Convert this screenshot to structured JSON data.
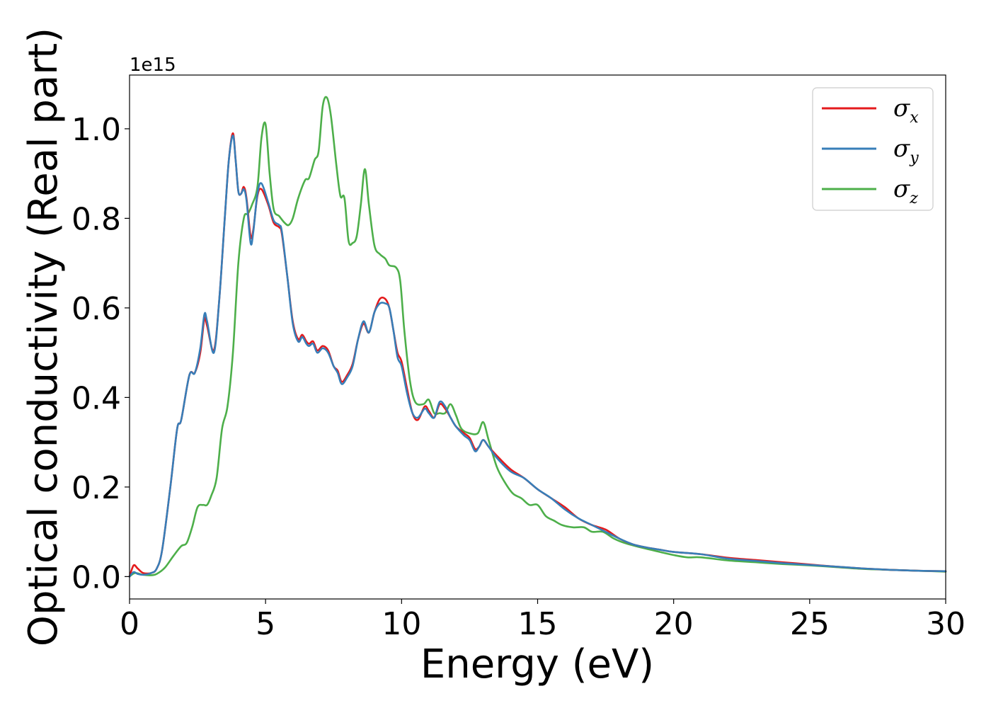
{
  "chart_data": {
    "type": "line",
    "title": "",
    "xlabel": "Energy (eV)",
    "ylabel": "Optical conductivity (Real part)",
    "y_offset_label": "1e15",
    "xlim": [
      0,
      30
    ],
    "ylim": [
      -0.05,
      1.12
    ],
    "xticks": [
      0,
      5,
      10,
      15,
      20,
      25,
      30
    ],
    "xtick_labels": [
      "0",
      "5",
      "10",
      "15",
      "20",
      "25",
      "30"
    ],
    "yticks": [
      0.0,
      0.2,
      0.4,
      0.6,
      0.8,
      1.0
    ],
    "ytick_labels": [
      "0.0",
      "0.2",
      "0.4",
      "0.6",
      "0.8",
      "1.0"
    ],
    "grid": false,
    "legend_position": "top-right",
    "series": [
      {
        "name": "σx",
        "symbol": "σ",
        "sub": "x",
        "color": "#e41a1c",
        "points": [
          [
            0,
            0.0
          ],
          [
            0.15,
            0.025
          ],
          [
            0.3,
            0.018
          ],
          [
            0.5,
            0.008
          ],
          [
            0.8,
            0.008
          ],
          [
            1.0,
            0.018
          ],
          [
            1.2,
            0.06
          ],
          [
            1.5,
            0.2
          ],
          [
            1.75,
            0.33
          ],
          [
            1.9,
            0.35
          ],
          [
            2.2,
            0.45
          ],
          [
            2.4,
            0.455
          ],
          [
            2.6,
            0.5
          ],
          [
            2.75,
            0.575
          ],
          [
            2.85,
            0.56
          ],
          [
            3.1,
            0.505
          ],
          [
            3.3,
            0.62
          ],
          [
            3.5,
            0.8
          ],
          [
            3.65,
            0.93
          ],
          [
            3.8,
            0.99
          ],
          [
            3.9,
            0.93
          ],
          [
            4.0,
            0.86
          ],
          [
            4.1,
            0.855
          ],
          [
            4.2,
            0.87
          ],
          [
            4.3,
            0.845
          ],
          [
            4.45,
            0.76
          ],
          [
            4.55,
            0.775
          ],
          [
            4.7,
            0.85
          ],
          [
            4.85,
            0.865
          ],
          [
            5.1,
            0.83
          ],
          [
            5.3,
            0.79
          ],
          [
            5.5,
            0.78
          ],
          [
            5.6,
            0.765
          ],
          [
            5.8,
            0.67
          ],
          [
            6.0,
            0.57
          ],
          [
            6.2,
            0.53
          ],
          [
            6.35,
            0.54
          ],
          [
            6.5,
            0.525
          ],
          [
            6.6,
            0.52
          ],
          [
            6.75,
            0.525
          ],
          [
            6.9,
            0.505
          ],
          [
            7.1,
            0.515
          ],
          [
            7.3,
            0.505
          ],
          [
            7.5,
            0.47
          ],
          [
            7.65,
            0.46
          ],
          [
            7.8,
            0.435
          ],
          [
            8.0,
            0.45
          ],
          [
            8.2,
            0.475
          ],
          [
            8.4,
            0.53
          ],
          [
            8.6,
            0.565
          ],
          [
            8.8,
            0.545
          ],
          [
            9.0,
            0.59
          ],
          [
            9.2,
            0.62
          ],
          [
            9.4,
            0.62
          ],
          [
            9.55,
            0.6
          ],
          [
            9.7,
            0.55
          ],
          [
            9.85,
            0.5
          ],
          [
            10.0,
            0.48
          ],
          [
            10.2,
            0.42
          ],
          [
            10.4,
            0.365
          ],
          [
            10.6,
            0.35
          ],
          [
            10.85,
            0.38
          ],
          [
            11.0,
            0.37
          ],
          [
            11.2,
            0.355
          ],
          [
            11.4,
            0.385
          ],
          [
            11.6,
            0.375
          ],
          [
            11.8,
            0.355
          ],
          [
            12.0,
            0.335
          ],
          [
            12.3,
            0.32
          ],
          [
            12.5,
            0.31
          ],
          [
            12.7,
            0.285
          ],
          [
            12.85,
            0.29
          ],
          [
            13.0,
            0.305
          ],
          [
            13.2,
            0.29
          ],
          [
            13.5,
            0.27
          ],
          [
            14.0,
            0.24
          ],
          [
            14.5,
            0.22
          ],
          [
            15.0,
            0.195
          ],
          [
            15.5,
            0.175
          ],
          [
            16.0,
            0.155
          ],
          [
            16.5,
            0.13
          ],
          [
            17.0,
            0.115
          ],
          [
            17.5,
            0.105
          ],
          [
            18.0,
            0.085
          ],
          [
            18.5,
            0.072
          ],
          [
            19.0,
            0.065
          ],
          [
            19.5,
            0.06
          ],
          [
            20.0,
            0.055
          ],
          [
            21.0,
            0.05
          ],
          [
            22.0,
            0.042
          ],
          [
            23.0,
            0.037
          ],
          [
            24.0,
            0.032
          ],
          [
            25.0,
            0.027
          ],
          [
            26.0,
            0.022
          ],
          [
            27.0,
            0.018
          ],
          [
            28.0,
            0.015
          ],
          [
            29.0,
            0.013
          ],
          [
            30.0,
            0.012
          ]
        ]
      },
      {
        "name": "σy",
        "symbol": "σ",
        "sub": "y",
        "color": "#377eb8",
        "points": [
          [
            0,
            0.0
          ],
          [
            0.15,
            0.01
          ],
          [
            0.3,
            0.006
          ],
          [
            0.5,
            0.004
          ],
          [
            0.8,
            0.008
          ],
          [
            1.0,
            0.018
          ],
          [
            1.2,
            0.06
          ],
          [
            1.5,
            0.2
          ],
          [
            1.75,
            0.33
          ],
          [
            1.9,
            0.35
          ],
          [
            2.2,
            0.45
          ],
          [
            2.4,
            0.455
          ],
          [
            2.6,
            0.51
          ],
          [
            2.75,
            0.585
          ],
          [
            2.85,
            0.57
          ],
          [
            3.1,
            0.5
          ],
          [
            3.3,
            0.62
          ],
          [
            3.5,
            0.8
          ],
          [
            3.65,
            0.93
          ],
          [
            3.8,
            0.985
          ],
          [
            3.9,
            0.93
          ],
          [
            4.0,
            0.86
          ],
          [
            4.1,
            0.855
          ],
          [
            4.2,
            0.865
          ],
          [
            4.3,
            0.84
          ],
          [
            4.45,
            0.745
          ],
          [
            4.55,
            0.77
          ],
          [
            4.7,
            0.855
          ],
          [
            4.85,
            0.878
          ],
          [
            5.1,
            0.835
          ],
          [
            5.3,
            0.795
          ],
          [
            5.5,
            0.785
          ],
          [
            5.6,
            0.77
          ],
          [
            5.8,
            0.67
          ],
          [
            6.0,
            0.565
          ],
          [
            6.2,
            0.525
          ],
          [
            6.35,
            0.535
          ],
          [
            6.5,
            0.52
          ],
          [
            6.6,
            0.515
          ],
          [
            6.75,
            0.52
          ],
          [
            6.9,
            0.5
          ],
          [
            7.1,
            0.51
          ],
          [
            7.3,
            0.5
          ],
          [
            7.5,
            0.47
          ],
          [
            7.65,
            0.455
          ],
          [
            7.8,
            0.43
          ],
          [
            8.0,
            0.445
          ],
          [
            8.2,
            0.47
          ],
          [
            8.4,
            0.53
          ],
          [
            8.6,
            0.57
          ],
          [
            8.8,
            0.545
          ],
          [
            9.0,
            0.59
          ],
          [
            9.2,
            0.61
          ],
          [
            9.4,
            0.61
          ],
          [
            9.55,
            0.6
          ],
          [
            9.7,
            0.55
          ],
          [
            9.85,
            0.49
          ],
          [
            10.0,
            0.47
          ],
          [
            10.2,
            0.41
          ],
          [
            10.4,
            0.365
          ],
          [
            10.6,
            0.355
          ],
          [
            10.85,
            0.375
          ],
          [
            11.0,
            0.365
          ],
          [
            11.2,
            0.355
          ],
          [
            11.4,
            0.39
          ],
          [
            11.6,
            0.38
          ],
          [
            11.8,
            0.355
          ],
          [
            12.0,
            0.335
          ],
          [
            12.3,
            0.315
          ],
          [
            12.5,
            0.305
          ],
          [
            12.7,
            0.28
          ],
          [
            12.85,
            0.29
          ],
          [
            13.0,
            0.305
          ],
          [
            13.2,
            0.29
          ],
          [
            13.5,
            0.265
          ],
          [
            14.0,
            0.235
          ],
          [
            14.5,
            0.22
          ],
          [
            15.0,
            0.195
          ],
          [
            15.5,
            0.175
          ],
          [
            16.0,
            0.15
          ],
          [
            16.5,
            0.13
          ],
          [
            17.0,
            0.115
          ],
          [
            17.5,
            0.1
          ],
          [
            18.0,
            0.085
          ],
          [
            18.5,
            0.072
          ],
          [
            19.0,
            0.065
          ],
          [
            19.5,
            0.06
          ],
          [
            20.0,
            0.055
          ],
          [
            21.0,
            0.05
          ],
          [
            22.0,
            0.04
          ],
          [
            23.0,
            0.035
          ],
          [
            24.0,
            0.03
          ],
          [
            25.0,
            0.026
          ],
          [
            26.0,
            0.022
          ],
          [
            27.0,
            0.018
          ],
          [
            28.0,
            0.015
          ],
          [
            29.0,
            0.013
          ],
          [
            30.0,
            0.012
          ]
        ]
      },
      {
        "name": "σz",
        "symbol": "σ",
        "sub": "z",
        "color": "#4daf4a",
        "points": [
          [
            0,
            0.0
          ],
          [
            0.2,
            0.008
          ],
          [
            0.5,
            0.004
          ],
          [
            0.8,
            0.003
          ],
          [
            1.0,
            0.006
          ],
          [
            1.3,
            0.02
          ],
          [
            1.6,
            0.045
          ],
          [
            1.9,
            0.068
          ],
          [
            2.1,
            0.075
          ],
          [
            2.3,
            0.11
          ],
          [
            2.5,
            0.155
          ],
          [
            2.7,
            0.16
          ],
          [
            2.85,
            0.16
          ],
          [
            3.0,
            0.18
          ],
          [
            3.2,
            0.22
          ],
          [
            3.4,
            0.33
          ],
          [
            3.6,
            0.38
          ],
          [
            3.8,
            0.5
          ],
          [
            4.0,
            0.7
          ],
          [
            4.2,
            0.8
          ],
          [
            4.35,
            0.81
          ],
          [
            4.5,
            0.83
          ],
          [
            4.7,
            0.87
          ],
          [
            4.85,
            0.98
          ],
          [
            5.0,
            1.01
          ],
          [
            5.15,
            0.9
          ],
          [
            5.3,
            0.82
          ],
          [
            5.5,
            0.805
          ],
          [
            5.7,
            0.79
          ],
          [
            5.85,
            0.785
          ],
          [
            6.0,
            0.8
          ],
          [
            6.2,
            0.845
          ],
          [
            6.45,
            0.885
          ],
          [
            6.6,
            0.89
          ],
          [
            6.8,
            0.93
          ],
          [
            6.95,
            0.95
          ],
          [
            7.1,
            1.05
          ],
          [
            7.25,
            1.07
          ],
          [
            7.4,
            1.03
          ],
          [
            7.6,
            0.92
          ],
          [
            7.75,
            0.85
          ],
          [
            7.9,
            0.845
          ],
          [
            8.05,
            0.75
          ],
          [
            8.2,
            0.745
          ],
          [
            8.35,
            0.76
          ],
          [
            8.5,
            0.83
          ],
          [
            8.65,
            0.91
          ],
          [
            8.8,
            0.83
          ],
          [
            9.0,
            0.74
          ],
          [
            9.2,
            0.72
          ],
          [
            9.4,
            0.71
          ],
          [
            9.55,
            0.695
          ],
          [
            9.8,
            0.69
          ],
          [
            9.95,
            0.66
          ],
          [
            10.1,
            0.55
          ],
          [
            10.3,
            0.44
          ],
          [
            10.5,
            0.39
          ],
          [
            10.8,
            0.385
          ],
          [
            11.0,
            0.395
          ],
          [
            11.2,
            0.365
          ],
          [
            11.4,
            0.365
          ],
          [
            11.6,
            0.365
          ],
          [
            11.8,
            0.385
          ],
          [
            12.0,
            0.36
          ],
          [
            12.2,
            0.33
          ],
          [
            12.5,
            0.32
          ],
          [
            12.8,
            0.32
          ],
          [
            13.0,
            0.345
          ],
          [
            13.2,
            0.305
          ],
          [
            13.5,
            0.245
          ],
          [
            13.8,
            0.21
          ],
          [
            14.1,
            0.185
          ],
          [
            14.4,
            0.175
          ],
          [
            14.7,
            0.16
          ],
          [
            15.0,
            0.16
          ],
          [
            15.3,
            0.135
          ],
          [
            15.6,
            0.125
          ],
          [
            15.9,
            0.115
          ],
          [
            16.3,
            0.11
          ],
          [
            16.7,
            0.11
          ],
          [
            17.0,
            0.1
          ],
          [
            17.4,
            0.1
          ],
          [
            17.8,
            0.085
          ],
          [
            18.2,
            0.075
          ],
          [
            18.8,
            0.065
          ],
          [
            19.5,
            0.055
          ],
          [
            20.0,
            0.048
          ],
          [
            20.5,
            0.043
          ],
          [
            21.0,
            0.043
          ],
          [
            22.0,
            0.036
          ],
          [
            23.0,
            0.032
          ],
          [
            24.0,
            0.028
          ],
          [
            25.0,
            0.025
          ],
          [
            26.0,
            0.021
          ],
          [
            27.0,
            0.017
          ],
          [
            28.0,
            0.015
          ],
          [
            29.0,
            0.013
          ],
          [
            30.0,
            0.011
          ]
        ]
      }
    ]
  }
}
